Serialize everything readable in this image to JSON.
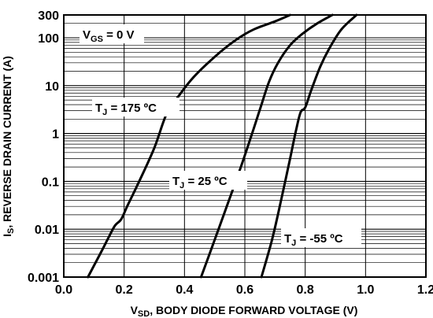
{
  "chart_data": {
    "type": "line",
    "title": "",
    "xlabel": {
      "main": "V",
      "sub": "SD",
      "rest": ", BODY DIODE FORWARD VOLTAGE (V)"
    },
    "ylabel": {
      "main": "I",
      "sub": "S",
      "rest": ", REVERSE DRAIN CURRENT (A)"
    },
    "x_scale": "linear",
    "y_scale": "log",
    "xlim": [
      0.0,
      1.2
    ],
    "ylim": [
      0.001,
      300
    ],
    "grid": true,
    "x_ticks": [
      {
        "value": 0.0,
        "label": "0.0"
      },
      {
        "value": 0.2,
        "label": "0.2"
      },
      {
        "value": 0.4,
        "label": "0.4"
      },
      {
        "value": 0.6,
        "label": "0.6"
      },
      {
        "value": 0.8,
        "label": "0.8"
      },
      {
        "value": 1.0,
        "label": "1.0"
      },
      {
        "value": 1.2,
        "label": "1.2"
      }
    ],
    "y_ticks": [
      {
        "value": 0.001,
        "label": "0.001"
      },
      {
        "value": 0.01,
        "label": "0.01"
      },
      {
        "value": 0.1,
        "label": "0.1"
      },
      {
        "value": 1,
        "label": "1"
      },
      {
        "value": 10,
        "label": "10"
      },
      {
        "value": 100,
        "label": "100"
      },
      {
        "value": 300,
        "label": "300"
      }
    ],
    "series": [
      {
        "name": "T_J = 175 °C",
        "label": {
          "main": "T",
          "sub": "J",
          "rest": " = 175 ºC"
        },
        "x": [
          0.08,
          0.12,
          0.15,
          0.17,
          0.19,
          0.21,
          0.25,
          0.3,
          0.34,
          0.38,
          0.43,
          0.5,
          0.57,
          0.63,
          0.7,
          0.75
        ],
        "y": [
          0.001,
          0.003,
          0.007,
          0.012,
          0.016,
          0.03,
          0.1,
          0.5,
          2.5,
          6,
          15,
          40,
          90,
          150,
          220,
          300
        ]
      },
      {
        "name": "T_J = 25 °C",
        "label": {
          "main": "T",
          "sub": "J",
          "rest": " = 25 ºC"
        },
        "x": [
          0.455,
          0.49,
          0.53,
          0.57,
          0.6,
          0.63,
          0.655,
          0.68,
          0.71,
          0.75,
          0.79,
          0.84,
          0.89
        ],
        "y": [
          0.001,
          0.004,
          0.02,
          0.1,
          0.35,
          1.3,
          4,
          12,
          30,
          70,
          120,
          200,
          300
        ]
      },
      {
        "name": "T_J = -55 °C",
        "label": {
          "main": "T",
          "sub": "J",
          "rest": " = -55 ºC"
        },
        "x": [
          0.655,
          0.69,
          0.72,
          0.75,
          0.77,
          0.785,
          0.8,
          0.82,
          0.85,
          0.88,
          0.92,
          0.97
        ],
        "y": [
          0.001,
          0.006,
          0.04,
          0.3,
          1.2,
          2.8,
          3.5,
          8,
          25,
          60,
          150,
          300
        ]
      }
    ],
    "annotations": [
      {
        "main": "V",
        "sub": "GS",
        "rest": " = 0 V"
      }
    ]
  }
}
